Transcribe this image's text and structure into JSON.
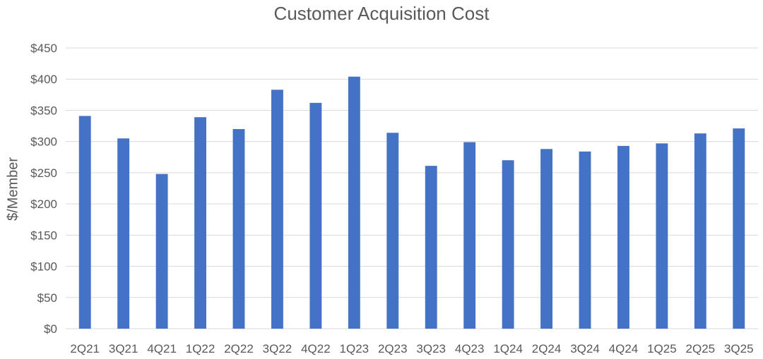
{
  "chart_data": {
    "type": "bar",
    "title": "Customer Acquisition Cost",
    "xlabel": "",
    "ylabel": "$/Member",
    "categories": [
      "2Q21",
      "3Q21",
      "4Q21",
      "1Q22",
      "2Q22",
      "3Q22",
      "4Q22",
      "1Q23",
      "2Q23",
      "3Q23",
      "4Q23",
      "1Q24",
      "2Q24",
      "3Q24",
      "4Q24",
      "1Q25",
      "2Q25",
      "3Q25"
    ],
    "values": [
      341,
      305,
      248,
      339,
      320,
      383,
      362,
      404,
      314,
      261,
      299,
      270,
      288,
      284,
      293,
      297,
      313,
      321
    ],
    "ylim": [
      0,
      450
    ],
    "yticks": [
      0,
      50,
      100,
      150,
      200,
      250,
      300,
      350,
      400,
      450
    ],
    "ytick_labels": [
      "$0",
      "$50",
      "$100",
      "$150",
      "$200",
      "$250",
      "$300",
      "$350",
      "$400",
      "$450"
    ],
    "grid": true,
    "legend": "none",
    "bar_color": "#4472C4",
    "grid_color": "#D9D9D9"
  }
}
